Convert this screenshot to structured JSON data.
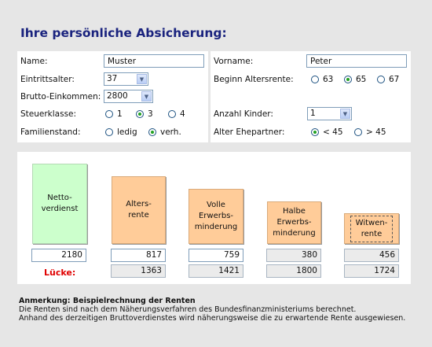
{
  "title": "Ihre persönliche Absicherung:",
  "form": {
    "name_label": "Name:",
    "name_value": "Muster",
    "vorname_label": "Vorname:",
    "vorname_value": "Peter",
    "eintrittsalter_label": "Eintrittsalter:",
    "eintrittsalter_value": "37",
    "beginn_label": "Beginn Altersrente:",
    "beginn_options": [
      "63",
      "65",
      "67"
    ],
    "beginn_selected": "65",
    "brutto_label": "Brutto-Einkommen:",
    "brutto_value": "2800",
    "steuerklasse_label": "Steuerklasse:",
    "steuerklasse_options": [
      "1",
      "3",
      "4"
    ],
    "steuerklasse_selected": "3",
    "kinder_label": "Anzahl Kinder:",
    "kinder_value": "1",
    "familienstand_label": "Familienstand:",
    "familienstand_options": [
      "ledig",
      "verh."
    ],
    "familienstand_selected": "verh.",
    "ehepartner_label": "Alter Ehepartner:",
    "ehepartner_options": [
      "< 45",
      "> 45"
    ],
    "ehepartner_selected": "< 45"
  },
  "bars": [
    {
      "label_lines": [
        "Netto-",
        "verdienst"
      ],
      "value": "2180",
      "gap": "",
      "color": "#ccffcc"
    },
    {
      "label_lines": [
        "Alters-",
        "rente"
      ],
      "value": "817",
      "gap": "1363",
      "color": "#ffcc99"
    },
    {
      "label_lines": [
        "Volle",
        "Erwerbs-",
        "minderung"
      ],
      "value": "759",
      "gap": "1421",
      "color": "#ffcc99"
    },
    {
      "label_lines": [
        "Halbe",
        "Erwerbs-",
        "minderung"
      ],
      "value": "380",
      "gap": "1800",
      "color": "#ffcc99"
    },
    {
      "label_lines": [
        "Witwen-",
        "rente"
      ],
      "value": "456",
      "gap": "1724",
      "color": "#ffcc99"
    }
  ],
  "luecke_label": "Lücke:",
  "note": {
    "heading": "Anmerkung: Beispielrechnung der Renten",
    "line1": "Die Renten sind nach dem Näherungsverfahren des Bundesfinanzministeriums berechnet.",
    "line2": "Anhand des derzeitigen Bruttoverdienstes wird näherungsweise die zu erwartende Rente ausgewiesen."
  }
}
